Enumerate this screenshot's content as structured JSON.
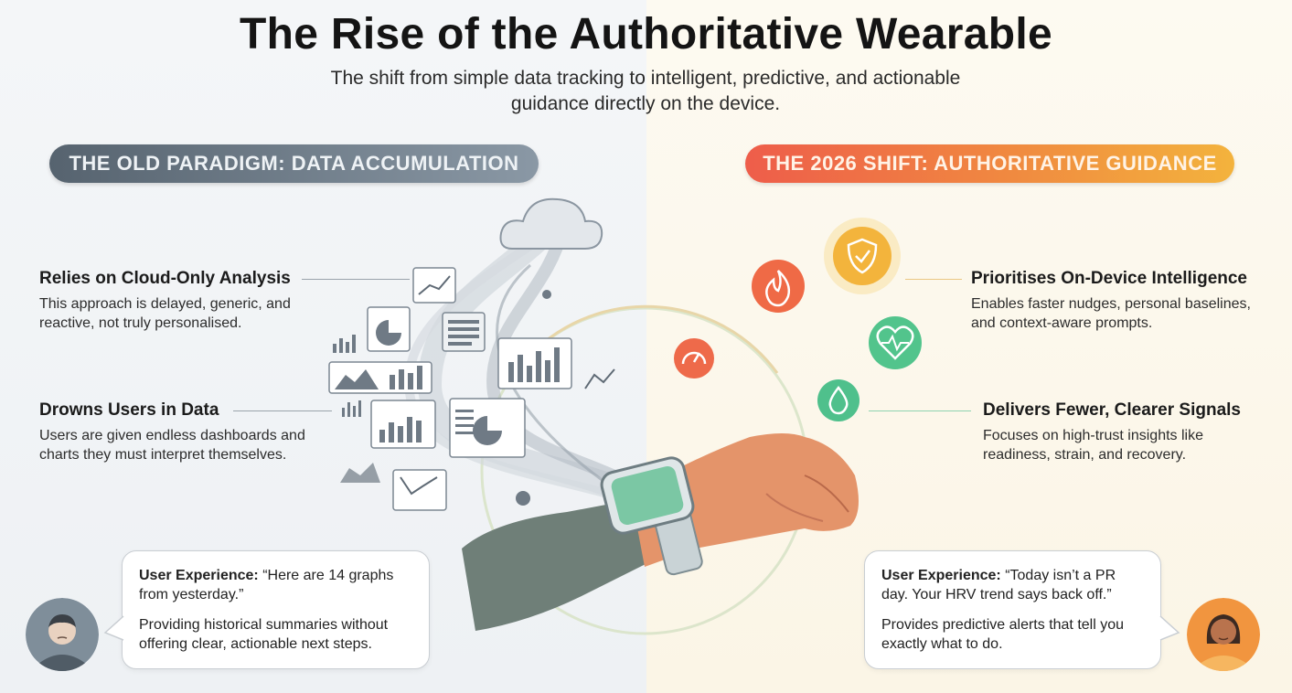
{
  "title": "The Rise of the Authoritative Wearable",
  "subtitle": "The shift from simple data tracking to intelligent, predictive, and actionable guidance directly on the device.",
  "old": {
    "heading": "THE OLD PARADIGM: DATA ACCUMULATION",
    "features": [
      {
        "title": "Relies on Cloud-Only Analysis",
        "text": "This approach is delayed, generic, and reactive, not truly personalised."
      },
      {
        "title": "Drowns Users in Data",
        "text": "Users are given endless dashboards and charts they must interpret themselves."
      }
    ],
    "experience": {
      "label": "User Experience:",
      "quote": "“Here are 14 graphs from yesterday.”",
      "text": "Providing historical summaries without offering clear, actionable next steps."
    }
  },
  "new": {
    "heading": "THE 2026 SHIFT: AUTHORITATIVE GUIDANCE",
    "features": [
      {
        "title": "Prioritises On-Device Intelligence",
        "text": "Enables faster nudges, personal baselines, and context-aware prompts."
      },
      {
        "title": "Delivers Fewer, Clearer Signals",
        "text": "Focuses on high-trust insights like readiness, strain, and recovery."
      }
    ],
    "experience": {
      "label": "User Experience:",
      "quote": "“Today isn’t a PR day. Your HRV trend says back off.”",
      "text": "Provides predictive alerts that tell you exactly what to do."
    }
  },
  "icons": [
    "cloud-icon",
    "flame-icon",
    "shield-check-icon",
    "heart-pulse-icon",
    "gauge-icon",
    "drop-icon",
    "smartwatch-icon"
  ],
  "colors": {
    "old_accent": "#5e6b77",
    "new_accent": "#ee6a45",
    "green": "#4cc08a",
    "gold": "#f4b63e"
  }
}
